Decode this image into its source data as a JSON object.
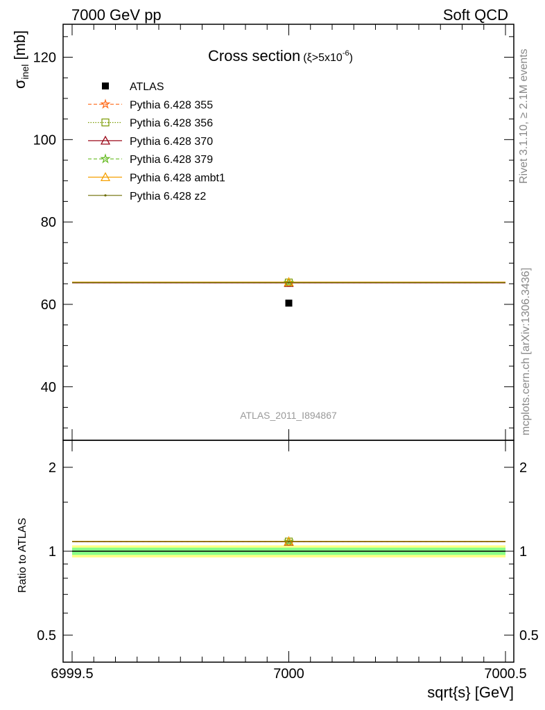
{
  "header": {
    "left_label": "7000 GeV pp",
    "right_label": "Soft QCD"
  },
  "side_labels": {
    "rivet": "Rivet 3.1.10, ≥ 2.1M events",
    "mcplots": "mcplots.cern.ch [arXiv:1306.3436]"
  },
  "chart_data": {
    "type": "scatter",
    "title": "Cross section",
    "title_suffix": "(ξ>5x10",
    "title_suffix_sup": "-6",
    "title_suffix_close": ")",
    "watermark": "ATLAS_2011_I894867",
    "xlabel": "sqrt{s} [GeV]",
    "xlim": [
      6999.5,
      7000.5
    ],
    "x_ticks": [
      6999.5,
      7000,
      7000.5
    ],
    "x_tick_labels": [
      "6999.5",
      "7000",
      "7000.5"
    ],
    "main_panel": {
      "ylabel_symbol": "σ",
      "ylabel_sub": "inel",
      "ylabel_unit": " [mb]",
      "ylim": [
        27,
        128
      ],
      "y_ticks": [
        40,
        60,
        80,
        100,
        120
      ],
      "y_tick_labels": [
        "40",
        "60",
        "80",
        "100",
        "120"
      ]
    },
    "ratio_panel": {
      "ylabel": "Ratio to ATLAS",
      "scale": "log",
      "ylim": [
        0.4,
        2.5
      ],
      "y_ticks": [
        0.5,
        1,
        2
      ],
      "y_tick_labels": [
        "0.5",
        "1",
        "2"
      ],
      "band_inner": [
        0.97,
        1.03
      ],
      "band_outer": [
        0.95,
        1.05
      ]
    },
    "legend_position": "top-left",
    "series": [
      {
        "name": "ATLAS",
        "x": [
          7000
        ],
        "y": [
          60.3
        ],
        "marker": "square",
        "color": "#000000",
        "line": "none"
      },
      {
        "name": "Pythia 6.428 355",
        "x": [
          7000
        ],
        "y": [
          65.3
        ],
        "ratio": [
          1.083
        ],
        "marker": "star",
        "color": "#ff6a1a",
        "line": "dashed"
      },
      {
        "name": "Pythia 6.428 356",
        "x": [
          7000
        ],
        "y": [
          65.3
        ],
        "ratio": [
          1.083
        ],
        "marker": "open-square",
        "color": "#7a9a01",
        "line": "dotted"
      },
      {
        "name": "Pythia 6.428 370",
        "x": [
          7000
        ],
        "y": [
          65.2
        ],
        "ratio": [
          1.081
        ],
        "marker": "open-triangle",
        "color": "#9b0a1a",
        "line": "solid"
      },
      {
        "name": "Pythia 6.428 379",
        "x": [
          7000
        ],
        "y": [
          65.3
        ],
        "ratio": [
          1.083
        ],
        "marker": "star",
        "color": "#66bb22",
        "line": "dashed"
      },
      {
        "name": "Pythia 6.428 ambt1",
        "x": [
          7000
        ],
        "y": [
          65.4
        ],
        "ratio": [
          1.085
        ],
        "marker": "open-triangle",
        "color": "#f5a000",
        "line": "solid"
      },
      {
        "name": "Pythia 6.428 z2",
        "x": [
          7000
        ],
        "y": [
          65.3
        ],
        "ratio": [
          1.083
        ],
        "marker": "dot",
        "color": "#6b6b00",
        "line": "solid"
      }
    ]
  }
}
